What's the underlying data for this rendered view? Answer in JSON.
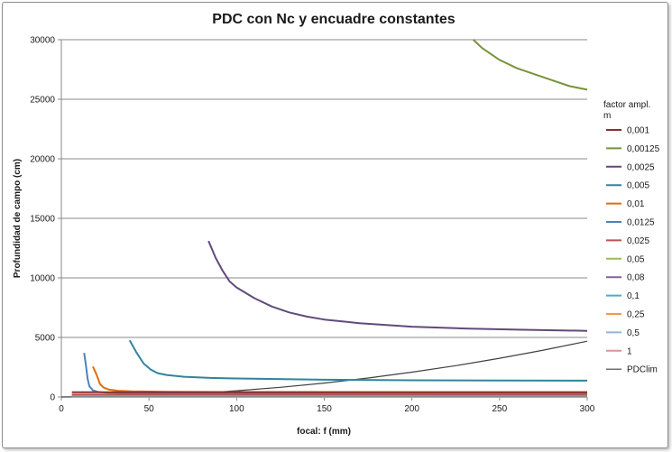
{
  "chart_data": {
    "type": "line",
    "title": "PDC con Nc y encuadre constantes",
    "xlabel": "focal: f (mm)",
    "ylabel": "Profundidad de campo (cm)",
    "xlim": [
      0,
      300
    ],
    "ylim": [
      0,
      30000
    ],
    "xticks": [
      0,
      50,
      100,
      150,
      200,
      250,
      300
    ],
    "yticks": [
      0,
      5000,
      10000,
      15000,
      20000,
      25000,
      30000
    ],
    "grid": "horizontal",
    "legend_title": "factor ampl. m",
    "legend_position": "right",
    "series": [
      {
        "name": "0,001",
        "color": "#8b2f2a",
        "points": [
          [
            6,
            400
          ],
          [
            300,
            400
          ]
        ]
      },
      {
        "name": "0,00125",
        "color": "#77933c",
        "points": [
          [
            235,
            30000
          ],
          [
            240,
            29300
          ],
          [
            250,
            28300
          ],
          [
            260,
            27600
          ],
          [
            270,
            27100
          ],
          [
            280,
            26600
          ],
          [
            290,
            26100
          ],
          [
            300,
            25800
          ]
        ]
      },
      {
        "name": "0,0025",
        "color": "#604a7b",
        "points": [
          [
            84,
            13100
          ],
          [
            88,
            11700
          ],
          [
            92,
            10600
          ],
          [
            96,
            9700
          ],
          [
            100,
            9200
          ],
          [
            110,
            8300
          ],
          [
            120,
            7600
          ],
          [
            130,
            7100
          ],
          [
            140,
            6750
          ],
          [
            150,
            6500
          ],
          [
            170,
            6200
          ],
          [
            200,
            5900
          ],
          [
            230,
            5750
          ],
          [
            260,
            5650
          ],
          [
            300,
            5550
          ]
        ]
      },
      {
        "name": "0,005",
        "color": "#31849b",
        "points": [
          [
            39,
            4750
          ],
          [
            43,
            3700
          ],
          [
            47,
            2800
          ],
          [
            51,
            2300
          ],
          [
            55,
            2000
          ],
          [
            60,
            1850
          ],
          [
            70,
            1700
          ],
          [
            85,
            1600
          ],
          [
            100,
            1550
          ],
          [
            150,
            1450
          ],
          [
            200,
            1400
          ],
          [
            250,
            1380
          ],
          [
            300,
            1370
          ]
        ]
      },
      {
        "name": "0,01",
        "color": "#e36c09",
        "points": [
          [
            18,
            2550
          ],
          [
            20,
            1900
          ],
          [
            22,
            1100
          ],
          [
            24,
            800
          ],
          [
            27,
            620
          ],
          [
            32,
            520
          ],
          [
            40,
            480
          ],
          [
            60,
            440
          ],
          [
            100,
            420
          ],
          [
            150,
            410
          ],
          [
            200,
            405
          ],
          [
            300,
            400
          ]
        ]
      },
      {
        "name": "0,0125",
        "color": "#4f81bd",
        "points": [
          [
            13,
            3700
          ],
          [
            14,
            2700
          ],
          [
            15,
            1500
          ],
          [
            16,
            900
          ],
          [
            18,
            550
          ],
          [
            21,
            420
          ],
          [
            26,
            360
          ],
          [
            40,
            330
          ],
          [
            80,
            320
          ],
          [
            150,
            315
          ],
          [
            300,
            310
          ]
        ]
      },
      {
        "name": "0,025",
        "color": "#c0504d",
        "points": [
          [
            6,
            200
          ],
          [
            300,
            200
          ]
        ]
      },
      {
        "name": "0,05",
        "color": "#9bbb59",
        "points": [
          [
            6,
            120
          ],
          [
            300,
            120
          ]
        ]
      },
      {
        "name": "0,08",
        "color": "#8064a2",
        "points": [
          [
            6,
            80
          ],
          [
            300,
            80
          ]
        ]
      },
      {
        "name": "0,1",
        "color": "#4bacc6",
        "points": [
          [
            6,
            60
          ],
          [
            300,
            60
          ]
        ]
      },
      {
        "name": "0,25",
        "color": "#f79646",
        "points": [
          [
            6,
            30
          ],
          [
            300,
            30
          ]
        ]
      },
      {
        "name": "0,5",
        "color": "#95b3d7",
        "points": [
          [
            6,
            15
          ],
          [
            300,
            15
          ]
        ]
      },
      {
        "name": "1",
        "color": "#d99694",
        "points": [
          [
            6,
            8
          ],
          [
            300,
            8
          ]
        ]
      },
      {
        "name": "PDClim",
        "color": "#404040",
        "points": [
          [
            0,
            0
          ],
          [
            25,
            30
          ],
          [
            50,
            130
          ],
          [
            75,
            290
          ],
          [
            100,
            520
          ],
          [
            125,
            810
          ],
          [
            150,
            1170
          ],
          [
            175,
            1590
          ],
          [
            200,
            2080
          ],
          [
            225,
            2630
          ],
          [
            250,
            3250
          ],
          [
            275,
            3930
          ],
          [
            300,
            4680
          ]
        ]
      }
    ]
  }
}
